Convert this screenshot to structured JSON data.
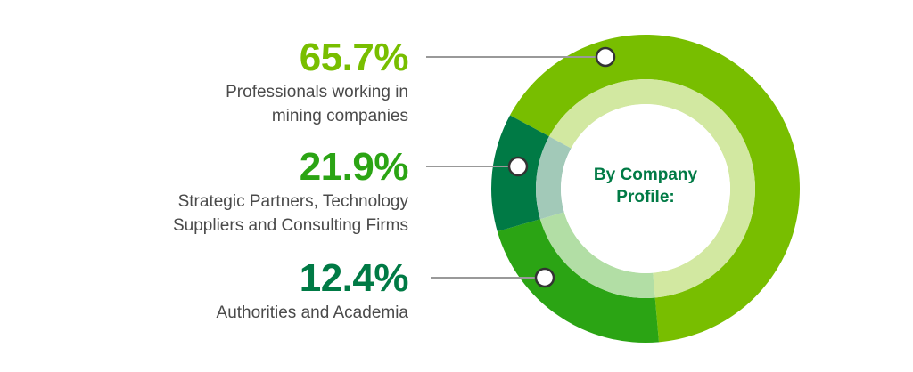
{
  "colors": {
    "series": [
      "#78BE00",
      "#2BA414",
      "#007A45"
    ],
    "inner_series": [
      "#D2E8A1",
      "#B2DEA5",
      "#A2C9B8"
    ],
    "connector": "#999999",
    "center_text": "#007A45"
  },
  "chart_data": {
    "type": "pie",
    "style": "donut",
    "center_label": [
      "By Company",
      "Profile:"
    ],
    "categories": [
      "Professionals working in mining companies",
      "Strategic Partners, Technology Suppliers and Consulting Firms",
      "Authorities and Academia"
    ],
    "values": [
      65.7,
      21.9,
      12.4
    ],
    "value_labels": [
      "65.7%",
      "21.9%",
      "12.4%"
    ],
    "label_lines": [
      [
        "Professionals working in",
        "mining companies"
      ],
      [
        "Strategic Partners, Technology",
        "Suppliers and Consulting Firms"
      ],
      [
        "Authorities and Academia"
      ]
    ]
  }
}
